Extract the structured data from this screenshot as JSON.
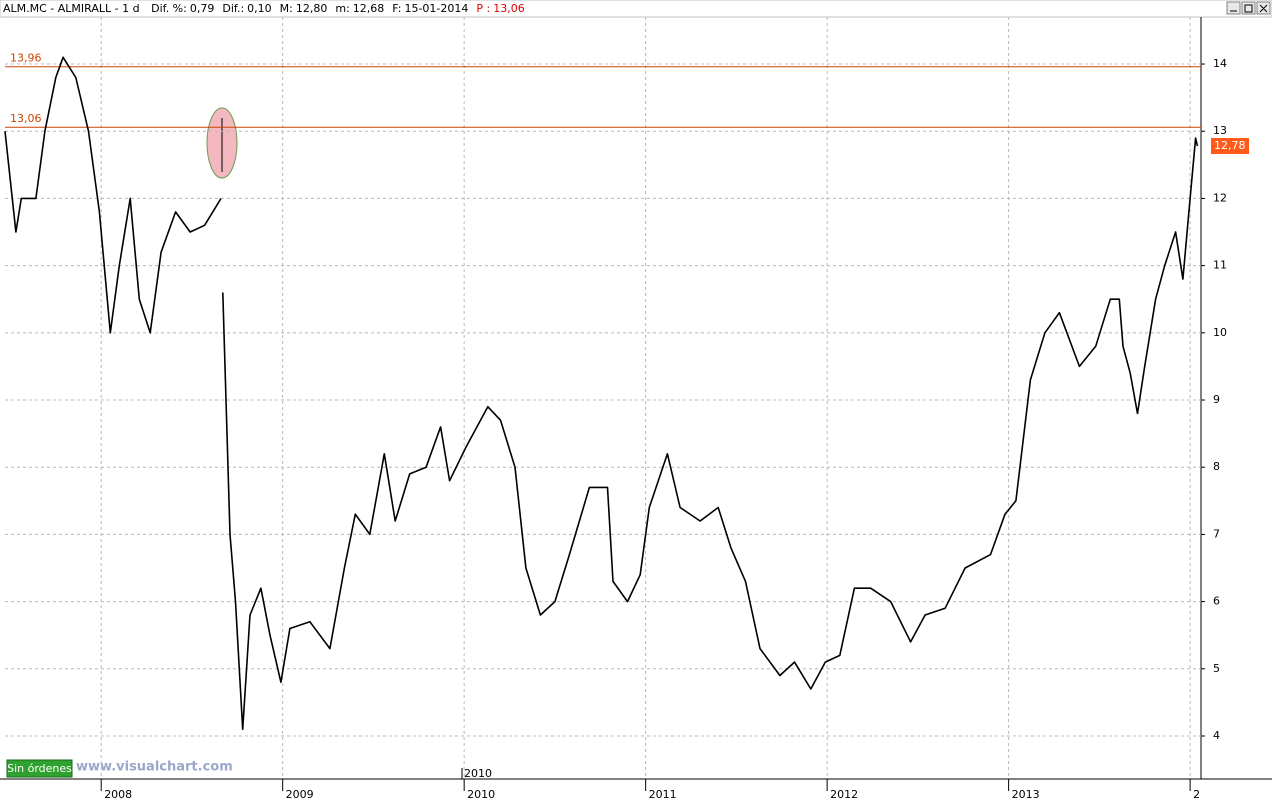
{
  "header": {
    "title": "ALM.MC - ALMIRALL - 1 d",
    "fields": [
      {
        "label": "Dif. %:",
        "value": "0,79"
      },
      {
        "label": "Dif.:",
        "value": "0,10"
      },
      {
        "label": "M:",
        "value": "12,80"
      },
      {
        "label": "m:",
        "value": "12,68"
      },
      {
        "label": "F:",
        "value": "15-01-2014"
      }
    ],
    "price": {
      "label": "P :",
      "value": "13,06"
    }
  },
  "footer": {
    "button": "Sin órdenes",
    "watermark": "www.visualchart.com",
    "cursor_label": "2010"
  },
  "chart_data": {
    "type": "line",
    "x": [
      2007.47,
      2007.53,
      2007.56,
      2007.64,
      2007.69,
      2007.75,
      2007.79,
      2007.86,
      2007.93,
      2007.99,
      2008.05,
      2008.1,
      2008.16,
      2008.21,
      2008.27,
      2008.33,
      2008.41,
      2008.49,
      2008.57,
      2008.66,
      2008.665,
      2008.67,
      2008.71,
      2008.74,
      2008.78,
      2008.82,
      2008.88,
      2008.93,
      2008.99,
      2009.04,
      2009.15,
      2009.26,
      2009.34,
      2009.4,
      2009.48,
      2009.56,
      2009.62,
      2009.7,
      2009.79,
      2009.87,
      2009.92,
      2010.01,
      2010.13,
      2010.2,
      2010.28,
      2010.34,
      2010.42,
      2010.5,
      2010.58,
      2010.69,
      2010.79,
      2010.82,
      2010.9,
      2010.97,
      2011.02,
      2011.12,
      2011.19,
      2011.3,
      2011.4,
      2011.47,
      2011.55,
      2011.63,
      2011.74,
      2011.82,
      2011.91,
      2011.99,
      2012.07,
      2012.15,
      2012.24,
      2012.35,
      2012.46,
      2012.54,
      2012.65,
      2012.76,
      2012.9,
      2012.98,
      2013.04,
      2013.12,
      2013.2,
      2013.28,
      2013.39,
      2013.48,
      2013.56,
      2013.61,
      2013.63,
      2013.67,
      2013.71,
      2013.75,
      2013.81,
      2013.86,
      2013.92,
      2013.96,
      2014.0,
      2014.03,
      2014.04
    ],
    "series": [
      {
        "name": "ALM.MC",
        "color": "#000000",
        "values": [
          13.0,
          11.5,
          12.0,
          12.0,
          13.0,
          13.8,
          14.1,
          13.8,
          13.0,
          11.8,
          10.0,
          11.0,
          12.0,
          10.5,
          10.0,
          11.2,
          11.8,
          11.5,
          11.6,
          12.0,
          null,
          10.6,
          7.0,
          6.0,
          4.1,
          5.8,
          6.2,
          5.5,
          4.8,
          5.6,
          5.7,
          5.3,
          6.5,
          7.3,
          7.0,
          8.2,
          7.2,
          7.9,
          8.0,
          8.6,
          7.8,
          8.3,
          8.9,
          8.7,
          8.0,
          6.5,
          5.8,
          6.0,
          6.7,
          7.7,
          7.7,
          6.3,
          6.0,
          6.4,
          7.4,
          8.2,
          7.4,
          7.2,
          7.4,
          6.8,
          6.3,
          5.3,
          4.9,
          5.1,
          4.7,
          5.1,
          5.2,
          6.2,
          6.2,
          6.0,
          5.4,
          5.8,
          5.9,
          6.5,
          6.7,
          7.3,
          7.5,
          9.3,
          10.0,
          10.3,
          9.5,
          9.8,
          10.5,
          10.5,
          9.8,
          9.4,
          8.8,
          9.5,
          10.5,
          11.0,
          11.5,
          10.8,
          12.0,
          12.9,
          12.78
        ]
      }
    ],
    "xlim": [
      2007.47,
      2014.06
    ],
    "xticks": [
      2008,
      2009,
      2010,
      2011,
      2012,
      2013,
      {
        "value": 2014,
        "label": "2"
      }
    ],
    "ylim": [
      3.36,
      14.7
    ],
    "yticks": [
      4,
      5,
      6,
      7,
      8,
      9,
      10,
      11,
      12,
      13,
      14
    ],
    "grid": true,
    "levels": [
      {
        "value": 13.96,
        "label": "13,96"
      },
      {
        "value": 13.06,
        "label": "13,06"
      }
    ],
    "level_color": "#cc4400",
    "last_price": {
      "value": 12.78,
      "label": "12,78"
    },
    "last_price_color": "#ff5a1a"
  }
}
